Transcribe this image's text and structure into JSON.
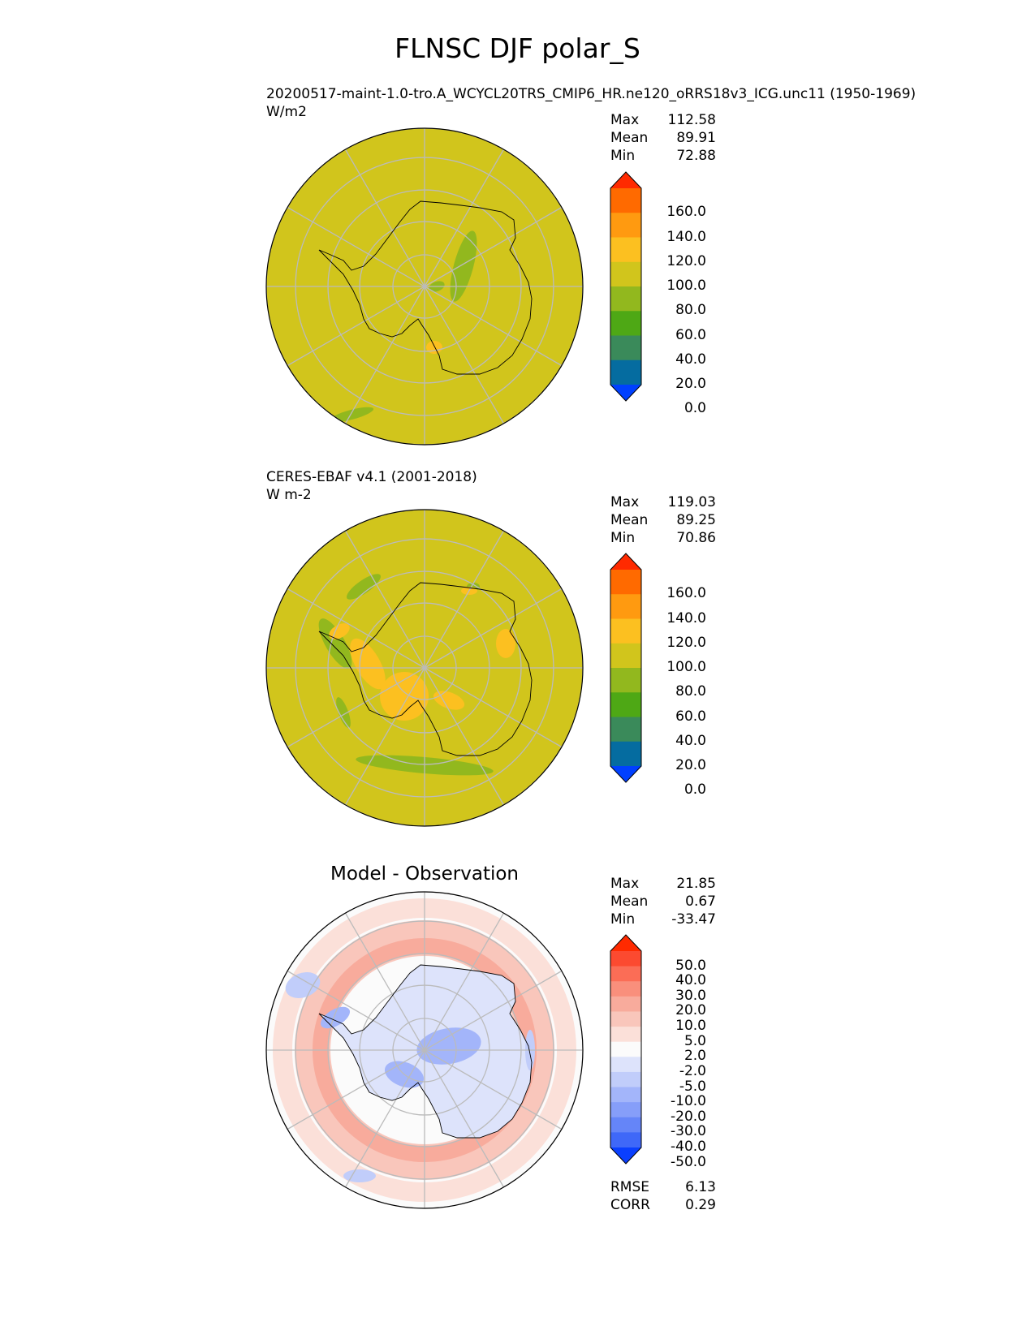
{
  "title": "FLNSC DJF polar_S",
  "panels": [
    {
      "name": "test",
      "title_line1": "20200517-maint-1.0-tro.A_WCYCL20TRS_CMIP6_HR.ne120_oRRS18v3_ICG.unc11 (1950-1969)",
      "title_line2": "W/m2",
      "stats": [
        {
          "label": "Max",
          "value": "112.58"
        },
        {
          "label": "Mean",
          "value": "89.91"
        },
        {
          "label": "Min",
          "value": "72.88"
        }
      ]
    },
    {
      "name": "reference",
      "title_line1": "CERES-EBAF v4.1 (2001-2018)",
      "title_line2": "W m-2",
      "stats": [
        {
          "label": "Max",
          "value": "119.03"
        },
        {
          "label": "Mean",
          "value": "89.25"
        },
        {
          "label": "Min",
          "value": "70.86"
        }
      ]
    },
    {
      "name": "difference",
      "title": "Model - Observation",
      "stats": [
        {
          "label": "Max",
          "value": "21.85"
        },
        {
          "label": "Mean",
          "value": "0.67"
        },
        {
          "label": "Min",
          "value": "-33.47"
        }
      ],
      "metrics": [
        {
          "label": "RMSE",
          "value": "6.13"
        },
        {
          "label": "CORR",
          "value": "0.29"
        }
      ]
    }
  ],
  "colorbars": {
    "absolute": {
      "labels": [
        "160.0",
        "140.0",
        "120.0",
        "100.0",
        "80.0",
        "60.0",
        "40.0",
        "20.0",
        "0.0"
      ],
      "colors": [
        "#ff2a00",
        "#ff6a00",
        "#ff9a10",
        "#fcc020",
        "#d1c51c",
        "#92b81e",
        "#4ea815",
        "#3a8a5a",
        "#056ca0",
        "#0040ff"
      ]
    },
    "difference": {
      "labels": [
        "50.0",
        "40.0",
        "30.0",
        "20.0",
        "10.0",
        "5.0",
        "2.0",
        "-2.0",
        "-5.0",
        "-10.0",
        "-20.0",
        "-30.0",
        "-40.0",
        "-50.0"
      ],
      "colors": [
        "#ff2a00",
        "#fc4a30",
        "#fb6d56",
        "#f98f7c",
        "#f8ab9c",
        "#f9c6bb",
        "#fbe0d9",
        "#fbfbfb",
        "#dde3fb",
        "#c1cdfa",
        "#a3b5fa",
        "#869ef9",
        "#6585f8",
        "#3f68f8",
        "#0a3ffe"
      ]
    }
  },
  "colors": {
    "map_fill": "#d1c51c",
    "grid": "#bbbbbb",
    "coast": "#000000"
  }
}
